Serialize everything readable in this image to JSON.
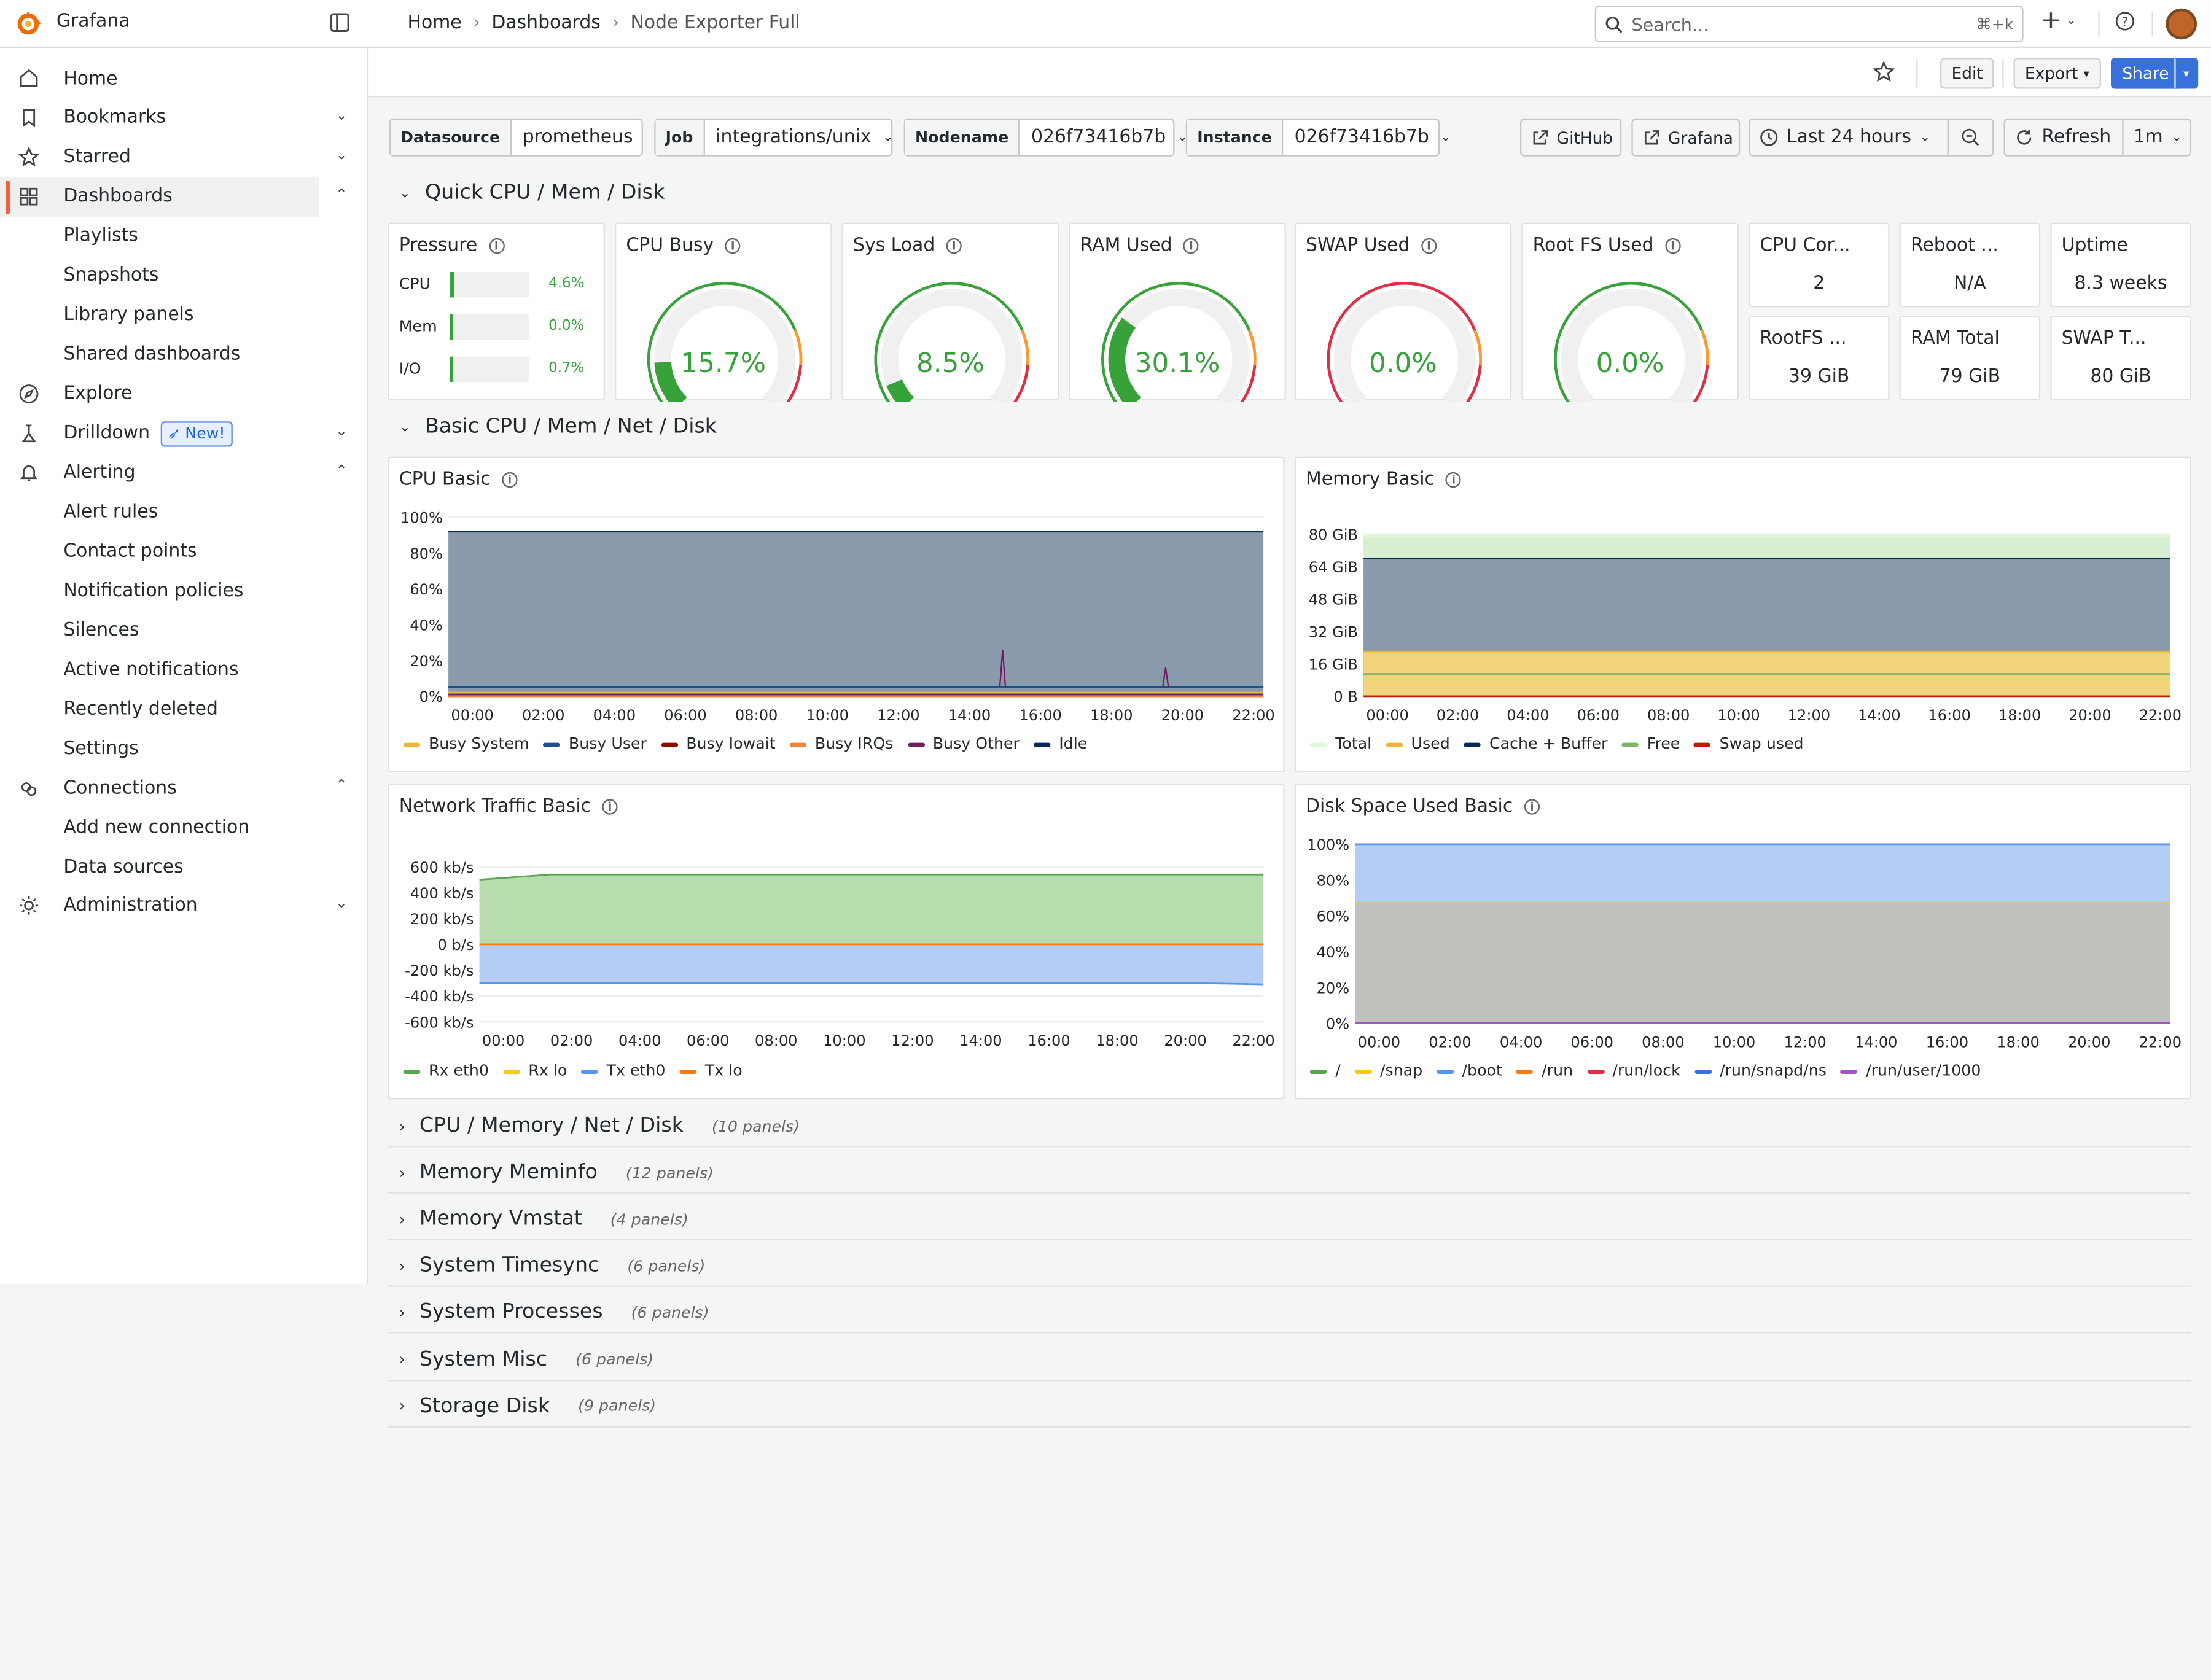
{
  "app": {
    "title": "Grafana"
  },
  "breadcrumbs": [
    "Home",
    "Dashboards",
    "Node Exporter Full"
  ],
  "search": {
    "placeholder": "Search...",
    "shortcut": "⌘+k"
  },
  "toolbar": {
    "edit": "Edit",
    "export": "Export",
    "share": "Share"
  },
  "sidebar": {
    "items": [
      {
        "label": "Home",
        "icon": "home-icon",
        "chevron": ""
      },
      {
        "label": "Bookmarks",
        "icon": "bookmark-icon",
        "chevron": "v"
      },
      {
        "label": "Starred",
        "icon": "star-icon",
        "chevron": "v"
      },
      {
        "label": "Dashboards",
        "icon": "apps-icon",
        "chevron": "^",
        "active": true
      },
      {
        "label": "Playlists",
        "sub": true
      },
      {
        "label": "Snapshots",
        "sub": true
      },
      {
        "label": "Library panels",
        "sub": true
      },
      {
        "label": "Shared dashboards",
        "sub": true
      },
      {
        "label": "Explore",
        "icon": "compass-icon",
        "chevron": ""
      },
      {
        "label": "Drilldown",
        "icon": "drilldown-icon",
        "chevron": "v",
        "badge": "New!"
      },
      {
        "label": "Alerting",
        "icon": "bell-icon",
        "chevron": "^"
      },
      {
        "label": "Alert rules",
        "sub": true
      },
      {
        "label": "Contact points",
        "sub": true
      },
      {
        "label": "Notification policies",
        "sub": true
      },
      {
        "label": "Silences",
        "sub": true
      },
      {
        "label": "Active notifications",
        "sub": true
      },
      {
        "label": "Recently deleted",
        "sub": true
      },
      {
        "label": "Settings",
        "sub": true
      },
      {
        "label": "Connections",
        "icon": "connections-icon",
        "chevron": "^"
      },
      {
        "label": "Add new connection",
        "sub": true
      },
      {
        "label": "Data sources",
        "sub": true
      },
      {
        "label": "Administration",
        "icon": "gear-icon",
        "chevron": "v"
      }
    ]
  },
  "variables": [
    {
      "label": "Datasource",
      "value": "prometheus"
    },
    {
      "label": "Job",
      "value": "integrations/unix"
    },
    {
      "label": "Nodename",
      "value": "026f73416b7b"
    },
    {
      "label": "Instance",
      "value": "026f73416b7b"
    }
  ],
  "links": {
    "github": "GitHub",
    "grafana": "Grafana"
  },
  "time": {
    "range": "Last 24 hours",
    "refresh": "Refresh",
    "interval": "1m"
  },
  "rows": {
    "quick": "Quick CPU / Mem / Disk",
    "basic": "Basic CPU / Mem / Net / Disk",
    "collapsed": [
      {
        "title": "CPU / Memory / Net / Disk",
        "count": "(10 panels)"
      },
      {
        "title": "Memory Meminfo",
        "count": "(12 panels)"
      },
      {
        "title": "Memory Vmstat",
        "count": "(4 panels)"
      },
      {
        "title": "System Timesync",
        "count": "(6 panels)"
      },
      {
        "title": "System Processes",
        "count": "(6 panels)"
      },
      {
        "title": "System Misc",
        "count": "(6 panels)"
      },
      {
        "title": "Storage Disk",
        "count": "(9 panels)"
      }
    ]
  },
  "pressure": {
    "title": "Pressure",
    "rows": [
      {
        "name": "CPU",
        "value": "4.6%",
        "fraction": 0.046
      },
      {
        "name": "Mem",
        "value": "0.0%",
        "fraction": 0.0
      },
      {
        "name": "I/O",
        "value": "0.7%",
        "fraction": 0.007
      }
    ]
  },
  "gauges": [
    {
      "title": "CPU Busy",
      "value": "15.7%",
      "fraction": 0.157
    },
    {
      "title": "Sys Load",
      "value": "8.5%",
      "fraction": 0.085
    },
    {
      "title": "RAM Used",
      "value": "30.1%",
      "fraction": 0.301
    },
    {
      "title": "SWAP Used",
      "value": "0.0%",
      "fraction": 0.0
    },
    {
      "title": "Root FS Used",
      "value": "0.0%",
      "fraction": 0.0
    }
  ],
  "stats": [
    {
      "title": "CPU Cor...",
      "value": "2"
    },
    {
      "title": "Reboot ...",
      "value": "N/A"
    },
    {
      "title": "Uptime",
      "value": "8.3 weeks"
    },
    {
      "title": "RootFS ...",
      "value": "39 GiB"
    },
    {
      "title": "RAM Total",
      "value": "79 GiB"
    },
    {
      "title": "SWAP T...",
      "value": "80 GiB"
    }
  ],
  "chart_data": [
    {
      "type": "area",
      "title": "CPU Basic",
      "x": [
        "00:00",
        "02:00",
        "04:00",
        "06:00",
        "08:00",
        "10:00",
        "12:00",
        "14:00",
        "16:00",
        "18:00",
        "20:00",
        "22:00"
      ],
      "yticks": [
        "100%",
        "80%",
        "60%",
        "40%",
        "20%",
        "0%"
      ],
      "ylim": [
        0,
        100
      ],
      "series": [
        {
          "name": "Busy System",
          "color": "#eab839",
          "values": [
            2,
            2,
            2,
            2,
            2,
            2,
            2,
            2,
            2,
            2,
            2,
            2
          ]
        },
        {
          "name": "Busy User",
          "color": "#1f4e8c",
          "values": [
            5,
            5,
            5,
            5,
            5,
            5,
            5,
            5,
            5,
            5,
            5,
            5
          ]
        },
        {
          "name": "Busy Iowait",
          "color": "#890f02",
          "values": [
            0,
            0,
            0,
            0,
            0,
            0,
            0,
            0,
            0,
            0,
            0,
            0
          ]
        },
        {
          "name": "Busy IRQs",
          "color": "#ef843c",
          "values": [
            0,
            0,
            0,
            0,
            0,
            0,
            0,
            0,
            0,
            0,
            0,
            0
          ]
        },
        {
          "name": "Busy Other",
          "color": "#6d1f62",
          "values": [
            1,
            1,
            1,
            1,
            1,
            1,
            1,
            1,
            1,
            1,
            1,
            1
          ]
        },
        {
          "name": "Idle",
          "color": "#052b51",
          "values": [
            92,
            92,
            92,
            92,
            92,
            92,
            92,
            92,
            92,
            92,
            92,
            92
          ]
        }
      ]
    },
    {
      "type": "area",
      "title": "Memory Basic",
      "x": [
        "00:00",
        "02:00",
        "04:00",
        "06:00",
        "08:00",
        "10:00",
        "12:00",
        "14:00",
        "16:00",
        "18:00",
        "20:00",
        "22:00"
      ],
      "yticks": [
        "80 GiB",
        "64 GiB",
        "48 GiB",
        "32 GiB",
        "16 GiB",
        "0 B"
      ],
      "ylim": [
        0,
        80
      ],
      "series": [
        {
          "name": "Total",
          "color": "#e0f9d7",
          "values": [
            79,
            79,
            79,
            79,
            79,
            79,
            79,
            79,
            79,
            79,
            79,
            79
          ]
        },
        {
          "name": "Used",
          "color": "#eab839",
          "values": [
            22,
            22,
            22,
            22,
            22,
            22,
            22,
            22,
            22,
            22,
            22,
            22
          ]
        },
        {
          "name": "Cache + Buffer",
          "color": "#052b51",
          "values": [
            68,
            68,
            68,
            68,
            68,
            68,
            68,
            68,
            68,
            68,
            68,
            68
          ]
        },
        {
          "name": "Free",
          "color": "#7eb26d",
          "values": [
            11,
            11,
            11,
            11,
            11,
            11,
            11,
            11,
            11,
            11,
            11,
            11
          ]
        },
        {
          "name": "Swap used",
          "color": "#bf1b00",
          "values": [
            0,
            0,
            0,
            0,
            0,
            0,
            0,
            0,
            0,
            0,
            0,
            0
          ]
        }
      ]
    },
    {
      "type": "area",
      "title": "Network Traffic Basic",
      "x": [
        "00:00",
        "02:00",
        "04:00",
        "06:00",
        "08:00",
        "10:00",
        "12:00",
        "14:00",
        "16:00",
        "18:00",
        "20:00",
        "22:00"
      ],
      "yticks": [
        "600 kb/s",
        "400 kb/s",
        "200 kb/s",
        "0 b/s",
        "-200 kb/s",
        "-400 kb/s",
        "-600 kb/s"
      ],
      "ylim": [
        -600,
        600
      ],
      "series": [
        {
          "name": "Rx eth0",
          "color": "#56a64b",
          "values": [
            500,
            540,
            540,
            540,
            540,
            540,
            540,
            540,
            540,
            540,
            540,
            540
          ]
        },
        {
          "name": "Rx lo",
          "color": "#f2cc0c",
          "values": [
            0,
            0,
            0,
            0,
            0,
            0,
            0,
            0,
            0,
            0,
            0,
            0
          ]
        },
        {
          "name": "Tx eth0",
          "color": "#5794f2",
          "values": [
            -300,
            -300,
            -300,
            -300,
            -300,
            -300,
            -300,
            -300,
            -300,
            -300,
            -300,
            -310
          ]
        },
        {
          "name": "Tx lo",
          "color": "#ff780a",
          "values": [
            0,
            0,
            0,
            0,
            0,
            0,
            0,
            0,
            0,
            0,
            0,
            0
          ]
        }
      ]
    },
    {
      "type": "area",
      "title": "Disk Space Used Basic",
      "x": [
        "00:00",
        "02:00",
        "04:00",
        "06:00",
        "08:00",
        "10:00",
        "12:00",
        "14:00",
        "16:00",
        "18:00",
        "20:00",
        "22:00"
      ],
      "yticks": [
        "100%",
        "80%",
        "60%",
        "40%",
        "20%",
        "0%"
      ],
      "ylim": [
        0,
        100
      ],
      "series": [
        {
          "name": "/",
          "color": "#56a64b",
          "values": [
            67,
            67,
            67,
            67,
            67,
            67,
            67,
            67,
            67,
            67,
            67,
            67
          ]
        },
        {
          "name": "/snap",
          "color": "#f2cc0c",
          "values": [
            67,
            67,
            67,
            67,
            67,
            67,
            67,
            67,
            67,
            67,
            67,
            67
          ]
        },
        {
          "name": "/boot",
          "color": "#5794f2",
          "values": [
            100,
            100,
            100,
            100,
            100,
            100,
            100,
            100,
            100,
            100,
            100,
            100
          ]
        },
        {
          "name": "/run",
          "color": "#ff780a",
          "values": [
            0,
            0,
            0,
            0,
            0,
            0,
            0,
            0,
            0,
            0,
            0,
            0
          ]
        },
        {
          "name": "/run/lock",
          "color": "#e02f44",
          "values": [
            0,
            0,
            0,
            0,
            0,
            0,
            0,
            0,
            0,
            0,
            0,
            0
          ]
        },
        {
          "name": "/run/snapd/ns",
          "color": "#3274d9",
          "values": [
            0,
            0,
            0,
            0,
            0,
            0,
            0,
            0,
            0,
            0,
            0,
            0
          ]
        },
        {
          "name": "/run/user/1000",
          "color": "#a352cc",
          "values": [
            0,
            0,
            0,
            0,
            0,
            0,
            0,
            0,
            0,
            0,
            0,
            0
          ]
        }
      ]
    }
  ]
}
